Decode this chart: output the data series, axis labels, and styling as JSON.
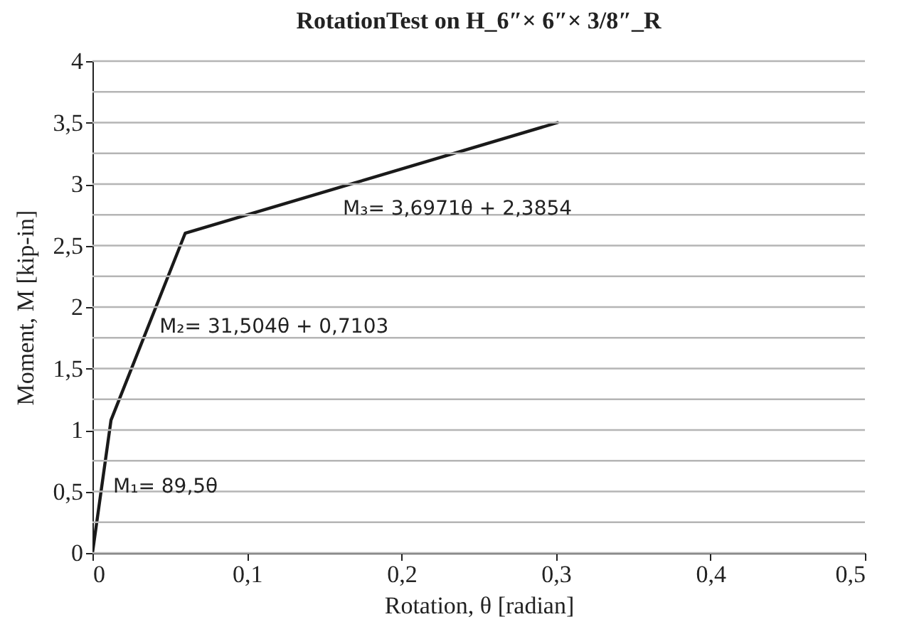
{
  "chart_data": {
    "type": "line",
    "title": "RotationTest on H_6″× 6″× 3/8″_R",
    "xlabel": "Rotation, θ [radian]",
    "ylabel": "Moment, M [kip-in]",
    "x": [
      0,
      0.012,
      0.06,
      0.301
    ],
    "series": [
      {
        "color": "#1a1a1a",
        "values": [
          0,
          1.08,
          2.6,
          3.5
        ]
      }
    ],
    "xlim": [
      0,
      0.5
    ],
    "xticks": [
      0,
      {
        "value": 0.1,
        "label": "0,1"
      },
      {
        "value": 0.2,
        "label": "0,2"
      },
      {
        "value": 0.3,
        "label": "0,3"
      },
      {
        "value": 0.4,
        "label": "0,4"
      },
      {
        "value": 0.5,
        "label": "0,5"
      }
    ],
    "ylim": [
      0,
      4
    ],
    "yticks": [
      0,
      {
        "value": 0.25,
        "label": null
      },
      {
        "value": 0.5,
        "label": "0,5"
      },
      {
        "value": 0.75,
        "label": null
      },
      1,
      {
        "value": 1.25,
        "label": null
      },
      {
        "value": 1.5,
        "label": "1,5"
      },
      {
        "value": 1.75,
        "label": null
      },
      2,
      {
        "value": 2.25,
        "label": null
      },
      {
        "value": 2.5,
        "label": "2,5"
      },
      {
        "value": 2.75,
        "label": null
      },
      3,
      {
        "value": 3.25,
        "label": null
      },
      {
        "value": 3.5,
        "label": "3,5"
      },
      {
        "value": 3.75,
        "label": null
      },
      4
    ],
    "grid": "y",
    "marker": "none",
    "line_style": "solid",
    "annotations": [
      "M₁= 89,5θ",
      "M₂= 31,504θ + 0,7103",
      "M₃= 3,6971θ + 2,3854"
    ]
  }
}
